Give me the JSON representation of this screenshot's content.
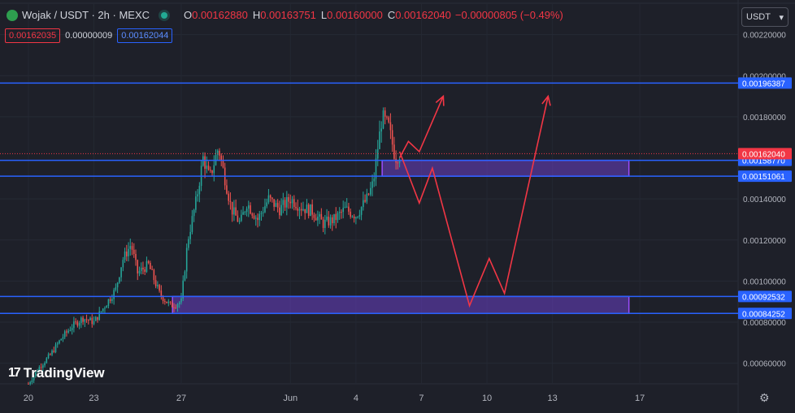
{
  "header": {
    "symbol": "Wojak / USDT · 2h · MEXC",
    "o_label": "O",
    "o_value": "0.00162880",
    "h_label": "H",
    "h_value": "0.00163751",
    "l_label": "L",
    "l_value": "0.00160000",
    "c_label": "C",
    "c_value": "0.00162040",
    "change": "−0.00000805 (−0.49%)"
  },
  "quote": {
    "sell": "0.00162035",
    "spread": "0.00000009",
    "buy": "0.00162044"
  },
  "currency_button": {
    "label": "USDT",
    "icon": "chevron-down-icon"
  },
  "watermark": "TradingView",
  "colors": {
    "background": "#1e2029",
    "up": "#26a69a",
    "down": "#ef5350",
    "level": "#2962ff",
    "zone": "#6a3fc7",
    "projection": "#f23645"
  },
  "chart_data": {
    "type": "candlestick",
    "symbol": "Wojak / USDT",
    "timeframe": "2h",
    "ylim": [
      0.0005,
      0.00225
    ],
    "y_ticks": [
      "0.00220000",
      "0.00200000",
      "0.00180000",
      "0.00140000",
      "0.00120000",
      "0.00100000",
      "0.00080000",
      "0.00060000"
    ],
    "x_ticks": [
      {
        "label": "20",
        "day": 20
      },
      {
        "label": "23",
        "day": 23
      },
      {
        "label": "27",
        "day": 27
      },
      {
        "label": "Jun",
        "day": 32
      },
      {
        "label": "4",
        "day": 35
      },
      {
        "label": "7",
        "day": 38
      },
      {
        "label": "10",
        "day": 41
      },
      {
        "label": "13",
        "day": 44
      },
      {
        "label": "17",
        "day": 48
      }
    ],
    "x_range_days": [
      18.7,
      52.5
    ],
    "price_path": [
      [
        20.0,
        0.0005
      ],
      [
        20.5,
        0.00058
      ],
      [
        21.0,
        0.00064
      ],
      [
        21.5,
        0.00072
      ],
      [
        22.0,
        0.00078
      ],
      [
        22.5,
        0.00082
      ],
      [
        23.0,
        0.0008
      ],
      [
        23.5,
        0.00088
      ],
      [
        24.0,
        0.00096
      ],
      [
        24.3,
        0.0011
      ],
      [
        24.7,
        0.00118
      ],
      [
        25.0,
        0.00104
      ],
      [
        25.5,
        0.00108
      ],
      [
        26.0,
        0.00094
      ],
      [
        26.5,
        0.00088
      ],
      [
        27.0,
        0.0009
      ],
      [
        27.3,
        0.0012
      ],
      [
        27.7,
        0.0014
      ],
      [
        28.0,
        0.0016
      ],
      [
        28.3,
        0.0015
      ],
      [
        28.7,
        0.00165
      ],
      [
        29.0,
        0.0015
      ],
      [
        29.3,
        0.00135
      ],
      [
        29.7,
        0.00128
      ],
      [
        30.0,
        0.00138
      ],
      [
        30.5,
        0.0013
      ],
      [
        31.0,
        0.0014
      ],
      [
        31.5,
        0.00135
      ],
      [
        32.0,
        0.0014
      ],
      [
        32.5,
        0.00136
      ],
      [
        33.0,
        0.00134
      ],
      [
        33.5,
        0.00128
      ],
      [
        34.0,
        0.0013
      ],
      [
        34.5,
        0.00135
      ],
      [
        35.0,
        0.00132
      ],
      [
        35.5,
        0.0014
      ],
      [
        35.8,
        0.00148
      ],
      [
        36.0,
        0.00165
      ],
      [
        36.2,
        0.0018
      ],
      [
        36.5,
        0.00175
      ],
      [
        36.8,
        0.0016
      ],
      [
        37.0,
        0.00162
      ]
    ],
    "levels": [
      {
        "label": "0.00196387",
        "value": 0.00196387
      },
      {
        "label": "0.00158770",
        "value": 0.0015877
      },
      {
        "label": "0.00151061",
        "value": 0.00151061
      },
      {
        "label": "0.00092532",
        "value": 0.00092532
      },
      {
        "label": "0.00084252",
        "value": 0.00084252
      }
    ],
    "last_price": {
      "label": "0.00162040",
      "value": 0.0016204
    },
    "zones": [
      {
        "from_day": 36.2,
        "to_day": 47.5,
        "low": 0.00151061,
        "high": 0.0015877
      },
      {
        "from_day": 26.6,
        "to_day": 47.5,
        "low": 0.00084252,
        "high": 0.00092532
      }
    ],
    "projection_short": [
      [
        37.0,
        0.0016
      ],
      [
        37.4,
        0.00168
      ],
      [
        37.9,
        0.00163
      ],
      [
        39.0,
        0.0019
      ]
    ],
    "projection_long": [
      [
        37.0,
        0.00163
      ],
      [
        37.9,
        0.00138
      ],
      [
        38.5,
        0.00155
      ],
      [
        40.2,
        0.00088
      ],
      [
        41.1,
        0.00111
      ],
      [
        41.8,
        0.00094
      ],
      [
        43.8,
        0.0019
      ]
    ]
  }
}
